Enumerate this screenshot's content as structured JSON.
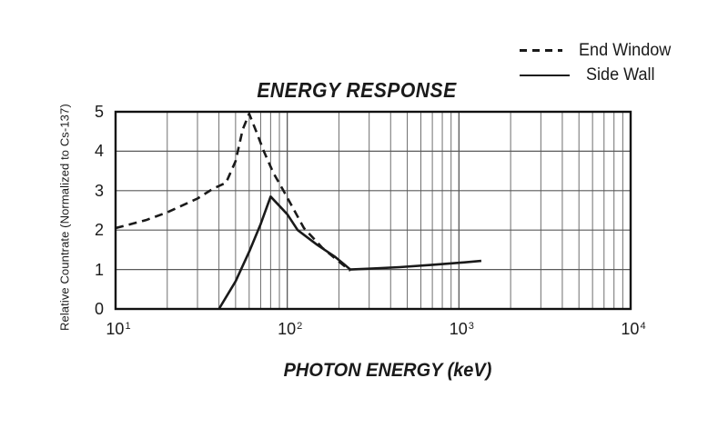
{
  "figure": {
    "background": "#ffffff"
  },
  "colors": {
    "line": "#1a1a1a",
    "grid": "#6f6f6f",
    "grid_major": "#5a5a5a",
    "border": "#111111",
    "text": "#1a1a1a"
  },
  "chart_data": {
    "type": "line",
    "title": "ENERGY RESPONSE",
    "xlabel": "PHOTON ENERGY (keV)",
    "ylabel": "Relative Countrate (Normalized to Cs-137)",
    "x_scale": "log",
    "x_range": [
      10,
      10000
    ],
    "y_range": [
      0,
      5
    ],
    "grid": true,
    "legend_position": "top-right-outside",
    "x_ticks": [
      {
        "value": 10,
        "base": "10",
        "exp": "1"
      },
      {
        "value": 100,
        "base": "10",
        "exp": "2"
      },
      {
        "value": 1000,
        "base": "10",
        "exp": "3"
      },
      {
        "value": 10000,
        "base": "10",
        "exp": "4"
      }
    ],
    "y_ticks": [
      0,
      1,
      2,
      3,
      4,
      5
    ],
    "series": [
      {
        "name": "End Window",
        "line_style": "dashed",
        "color": "#1a1a1a",
        "points": [
          [
            10,
            2.05
          ],
          [
            15,
            2.25
          ],
          [
            20,
            2.45
          ],
          [
            30,
            2.8
          ],
          [
            37,
            3.05
          ],
          [
            44,
            3.2
          ],
          [
            50,
            3.75
          ],
          [
            55,
            4.55
          ],
          [
            60,
            4.95
          ],
          [
            66,
            4.5
          ],
          [
            73,
            4.0
          ],
          [
            83,
            3.45
          ],
          [
            95,
            3.0
          ],
          [
            125,
            2.05
          ],
          [
            160,
            1.55
          ],
          [
            200,
            1.2
          ],
          [
            233,
            0.97
          ]
        ]
      },
      {
        "name": "Side Wall",
        "line_style": "solid",
        "color": "#1a1a1a",
        "points": [
          [
            40,
            0.0
          ],
          [
            50,
            0.7
          ],
          [
            60,
            1.45
          ],
          [
            70,
            2.15
          ],
          [
            80,
            2.85
          ],
          [
            100,
            2.4
          ],
          [
            115,
            2.0
          ],
          [
            150,
            1.62
          ],
          [
            190,
            1.32
          ],
          [
            233,
            1.0
          ],
          [
            300,
            1.02
          ],
          [
            450,
            1.06
          ],
          [
            700,
            1.12
          ],
          [
            1000,
            1.17
          ],
          [
            1350,
            1.22
          ]
        ]
      }
    ]
  }
}
